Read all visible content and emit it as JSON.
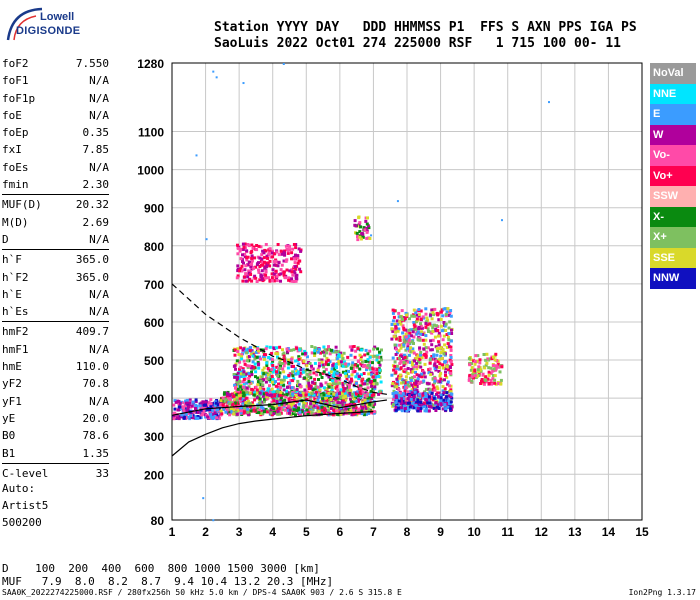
{
  "logo": {
    "line1": "Lowell",
    "line2": "DIGISONDE"
  },
  "header": {
    "line1": "Station YYYY DAY   DDD HHMMSS P1  FFS S AXN PPS IGA PS",
    "line2": "SaoLuis 2022 Oct01 274 225000 RSF   1 715 100 00- 11"
  },
  "params": [
    {
      "k": "foF2",
      "v": "7.550"
    },
    {
      "k": "foF1",
      "v": "N/A"
    },
    {
      "k": "foF1p",
      "v": "N/A"
    },
    {
      "k": "foE",
      "v": "N/A"
    },
    {
      "k": "foEp",
      "v": "0.35"
    },
    {
      "k": "fxI",
      "v": "7.85"
    },
    {
      "k": "foEs",
      "v": "N/A"
    },
    {
      "k": "fmin",
      "v": "2.30"
    },
    {
      "k": "MUF(D)",
      "v": "20.32",
      "sep": true
    },
    {
      "k": "M(D)",
      "v": "2.69"
    },
    {
      "k": "D",
      "v": "N/A"
    },
    {
      "k": "h`F",
      "v": "365.0",
      "sep": true
    },
    {
      "k": "h`F2",
      "v": "365.0"
    },
    {
      "k": "h`E",
      "v": "N/A"
    },
    {
      "k": "h`Es",
      "v": "N/A"
    },
    {
      "k": "hmF2",
      "v": "409.7",
      "sep": true
    },
    {
      "k": "hmF1",
      "v": "N/A"
    },
    {
      "k": "hmE",
      "v": "110.0"
    },
    {
      "k": "yF2",
      "v": "70.8"
    },
    {
      "k": "yF1",
      "v": "N/A"
    },
    {
      "k": "yE",
      "v": "20.0"
    },
    {
      "k": "B0",
      "v": "78.6"
    },
    {
      "k": "B1",
      "v": "1.35"
    },
    {
      "k": "C-level",
      "v": "33",
      "sep": true
    }
  ],
  "auto": {
    "l1": "Auto:",
    "l2": "Artist5",
    "l3": "500200"
  },
  "legend": [
    {
      "label": "NoVal",
      "color": "#9a9a9a"
    },
    {
      "label": "NNE",
      "color": "#00e5ff"
    },
    {
      "label": "E",
      "color": "#3b9cff"
    },
    {
      "label": "W",
      "color": "#b0009c"
    },
    {
      "label": "Vo-",
      "color": "#ff4aa8"
    },
    {
      "label": "Vo+",
      "color": "#ff0050"
    },
    {
      "label": "SSW",
      "color": "#ffb0b0"
    },
    {
      "label": "X-",
      "color": "#0a8a10"
    },
    {
      "label": "X+",
      "color": "#7ec060"
    },
    {
      "label": "SSE",
      "color": "#d9d92a"
    },
    {
      "label": "NNW",
      "color": "#1010c0"
    }
  ],
  "bottom": {
    "d_line": "D    100  200  400  600  800 1000 1500 3000 [km]",
    "muf_line": "MUF   7.9  8.0  8.2  8.7  9.4 10.4 13.2 20.3 [MHz]"
  },
  "footer": {
    "left": "SAA0K_2022274225000.RSF / 280fx256h 50 kHz 5.0 km / DPS-4 SAA0K 903 / 2.6 S 315.8 E",
    "right": "Ion2Png 1.3.17"
  },
  "chart_data": {
    "type": "scatter",
    "xlim": [
      1,
      15
    ],
    "ylim": [
      80,
      1280
    ],
    "x_ticks": [
      "1",
      "2",
      "3",
      "4",
      "5",
      "6",
      "7",
      "8",
      "9",
      "10",
      "11",
      "12",
      "13",
      "14",
      "15"
    ],
    "y_ticks": [
      "80",
      "200",
      "300",
      "400",
      "500",
      "600",
      "700",
      "800",
      "900",
      "1000",
      "1100",
      "1280"
    ],
    "grid": true,
    "clusters": [
      {
        "x": [
          1.0,
          2.4
        ],
        "y": [
          350,
          400
        ],
        "n": 260,
        "colors": [
          "#b0009c",
          "#ff4aa8",
          "#3b9cff",
          "#1010c0"
        ]
      },
      {
        "x": [
          2.4,
          7.0
        ],
        "y": [
          360,
          420
        ],
        "n": 900,
        "colors": [
          "#b0009c",
          "#ff4aa8",
          "#ff0050",
          "#3b9cff",
          "#d9d92a",
          "#0a8a10",
          "#7ec060"
        ]
      },
      {
        "x": [
          2.8,
          7.2
        ],
        "y": [
          410,
          540
        ],
        "n": 900,
        "colors": [
          "#ff4aa8",
          "#ff0050",
          "#b0009c",
          "#3b9cff",
          "#d9d92a",
          "#0a8a10",
          "#7ec060",
          "#00e5ff"
        ]
      },
      {
        "x": [
          7.5,
          9.3
        ],
        "y": [
          380,
          640
        ],
        "n": 700,
        "colors": [
          "#ff4aa8",
          "#ff0050",
          "#b0009c",
          "#3b9cff",
          "#d9d92a",
          "#7ec060"
        ]
      },
      {
        "x": [
          7.6,
          9.3
        ],
        "y": [
          370,
          420
        ],
        "n": 200,
        "colors": [
          "#3b9cff",
          "#1010c0",
          "#b0009c"
        ]
      },
      {
        "x": [
          9.8,
          10.8
        ],
        "y": [
          440,
          520
        ],
        "n": 120,
        "colors": [
          "#ff4aa8",
          "#ff0050",
          "#d9d92a",
          "#7ec060"
        ]
      },
      {
        "x": [
          2.9,
          4.8
        ],
        "y": [
          710,
          810
        ],
        "n": 260,
        "colors": [
          "#b0009c",
          "#ff4aa8",
          "#ff0050"
        ]
      },
      {
        "x": [
          6.4,
          6.9
        ],
        "y": [
          820,
          880
        ],
        "n": 40,
        "colors": [
          "#b0009c",
          "#ff4aa8",
          "#d9d92a",
          "#0a8a10"
        ]
      }
    ],
    "trace_lower": {
      "x": [
        1,
        1.5,
        2,
        2.5,
        3,
        3.5,
        4,
        5,
        6,
        7
      ],
      "y": [
        248,
        285,
        305,
        322,
        333,
        340,
        345,
        354,
        360,
        365
      ]
    },
    "trace_hmf2": {
      "x": [
        1,
        2,
        3,
        4,
        5,
        6,
        7,
        7.4
      ],
      "y": [
        355,
        372,
        378,
        383,
        395,
        375,
        390,
        395
      ]
    },
    "trace_profile": {
      "x": [
        1,
        1.5,
        2,
        2.5,
        3,
        3.5,
        4,
        4.5,
        5,
        5.5,
        6,
        6.5,
        7,
        7.4
      ],
      "y": [
        700,
        660,
        620,
        590,
        560,
        535,
        510,
        495,
        475,
        465,
        450,
        430,
        415,
        410
      ]
    }
  }
}
